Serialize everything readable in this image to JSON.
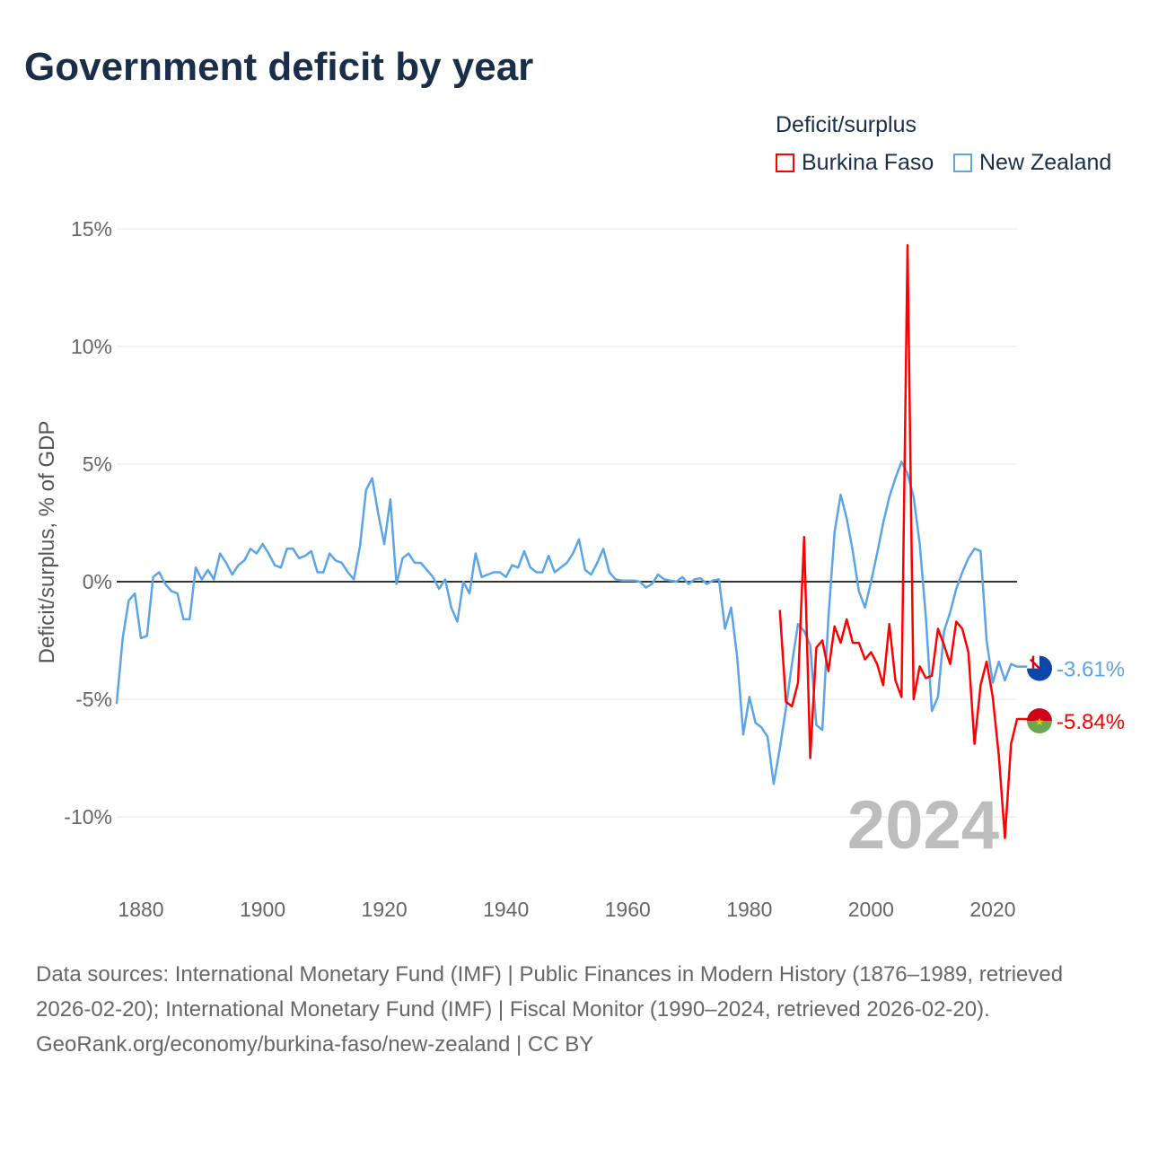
{
  "chart_data": {
    "type": "line",
    "title": "Government deficit by year",
    "ylabel": "Deficit/surplus, % of GDP",
    "xlabel": "",
    "legend_title": "Deficit/surplus",
    "legend_placement": "top-right",
    "xlim": [
      1876,
      2024
    ],
    "ylim": [
      -12,
      15
    ],
    "x_ticks": [
      1880,
      1900,
      1920,
      1940,
      1960,
      1980,
      2000,
      2020
    ],
    "x_tick_labels": [
      "1880",
      "1900",
      "1920",
      "1940",
      "1960",
      "1980",
      "2000",
      "2020"
    ],
    "y_ticks": [
      15,
      10,
      5,
      0,
      -5,
      -10
    ],
    "y_tick_labels": [
      "15%",
      "10%",
      "5%",
      "0%",
      "-5%",
      "-10%"
    ],
    "grid": true,
    "year_label": "2024",
    "series": [
      {
        "name": "Burkina Faso",
        "color": "#ff0000",
        "start_year": 1985,
        "end_label": "-5.84%",
        "flag": "burkina-faso-flag",
        "values": [
          -1.2,
          -5.1,
          -5.3,
          -4.3,
          1.9,
          -7.5,
          -2.8,
          -2.5,
          -3.8,
          -1.9,
          -2.6,
          -1.6,
          -2.6,
          -2.6,
          -3.3,
          -3.0,
          -3.5,
          -4.4,
          -1.8,
          -4.2,
          -4.9,
          14.3,
          -5.0,
          -3.6,
          -4.1,
          -4.0,
          -2.0,
          -2.7,
          -3.5,
          -1.7,
          -2.0,
          -3.0,
          -6.9,
          -4.4,
          -3.4,
          -4.9,
          -7.4,
          -10.9,
          -6.9,
          -5.84
        ]
      },
      {
        "name": "New Zealand",
        "color": "#5ba4e8",
        "start_year": 1876,
        "end_label": "-3.61%",
        "flag": "new-zealand-flag",
        "values": [
          -5.2,
          -2.4,
          -0.8,
          -0.5,
          -2.4,
          -2.3,
          0.2,
          0.4,
          -0.1,
          -0.4,
          -0.5,
          -1.6,
          -1.6,
          0.6,
          0.1,
          0.5,
          0.1,
          1.2,
          0.8,
          0.3,
          0.7,
          0.9,
          1.4,
          1.2,
          1.6,
          1.2,
          0.7,
          0.6,
          1.4,
          1.4,
          1.0,
          1.1,
          1.3,
          0.4,
          0.4,
          1.2,
          0.9,
          0.8,
          0.4,
          0.1,
          1.5,
          3.9,
          4.4,
          2.9,
          1.6,
          3.5,
          -0.1,
          1.0,
          1.2,
          0.8,
          0.8,
          0.5,
          0.2,
          -0.3,
          0.1,
          -1.1,
          -1.7,
          0.0,
          -0.5,
          1.2,
          0.2,
          0.3,
          0.4,
          0.4,
          0.2,
          0.7,
          0.6,
          1.3,
          0.6,
          0.4,
          0.4,
          1.1,
          0.4,
          0.6,
          0.8,
          1.2,
          1.8,
          0.5,
          0.3,
          0.8,
          1.4,
          0.4,
          0.1,
          0.05,
          0.05,
          0.05,
          0.0,
          -0.25,
          -0.1,
          0.3,
          0.1,
          0.05,
          0.0,
          0.2,
          -0.1,
          0.1,
          0.15,
          -0.1,
          0.05,
          0.1,
          -2.0,
          -1.1,
          -3.2,
          -6.5,
          -4.9,
          -6.0,
          -6.2,
          -6.6,
          -8.6,
          -7.1,
          -5.4,
          -3.5,
          -1.8,
          -2.1,
          -2.7,
          -6.1,
          -6.3,
          -1.5,
          2.1,
          3.7,
          2.7,
          1.3,
          -0.4,
          -1.1,
          0.0,
          1.2,
          2.5,
          3.6,
          4.4,
          5.1,
          4.6,
          3.6,
          1.6,
          -1.5,
          -5.5,
          -4.9,
          -2.1,
          -1.3,
          -0.3,
          0.4,
          1.0,
          1.4,
          1.3,
          -2.5,
          -4.3,
          -3.4,
          -4.2,
          -3.5,
          -3.61
        ]
      }
    ]
  },
  "footer": {
    "source": "Data sources: International Monetary Fund (IMF) | Public Finances in Modern History (1876–1989, retrieved 2026-02-20); International Monetary Fund (IMF) | Fiscal Monitor (1990–2024, retrieved 2026-02-20).",
    "credit": "GeoRank.org/economy/burkina-faso/new-zealand | CC BY"
  }
}
